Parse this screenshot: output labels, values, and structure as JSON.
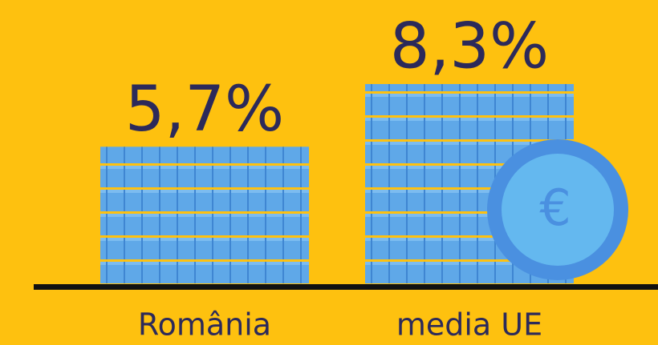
{
  "chart_data": {
    "type": "bar",
    "categories": [
      "România",
      "media UE"
    ],
    "values": [
      5.7,
      8.3
    ],
    "value_labels": [
      "5,7%",
      "8,3%"
    ],
    "color": "#5fa8e8",
    "coin_symbol": "€"
  }
}
